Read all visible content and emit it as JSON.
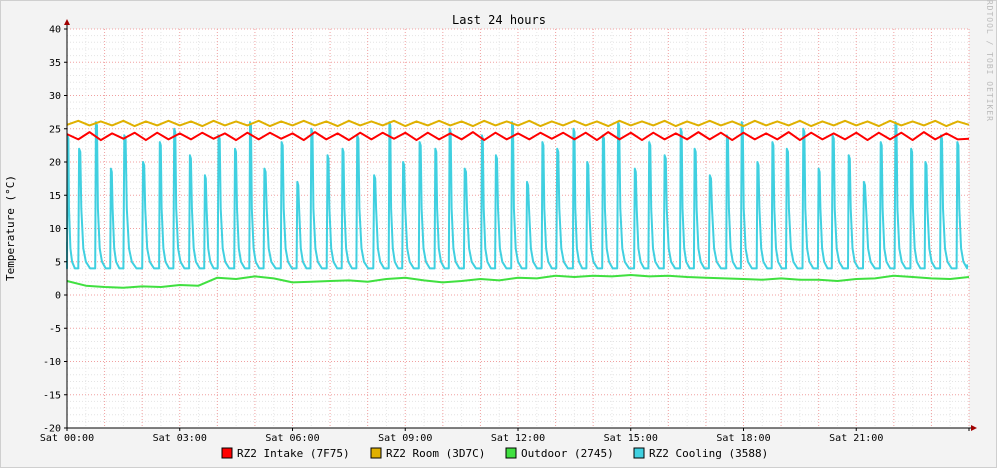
{
  "chart_data": {
    "type": "line",
    "title": "Last 24 hours",
    "ylabel": "Temperature (°C)",
    "xlabel": "",
    "watermark": "RRDTOOL / TOBI OETIKER",
    "ylim": [
      -20,
      40
    ],
    "yticks": [
      40,
      35,
      30,
      25,
      20,
      15,
      10,
      5,
      0,
      -5,
      -10,
      -15,
      -20
    ],
    "xlim": [
      0,
      24
    ],
    "xticks": [
      {
        "hour": 0,
        "label": "Sat 00:00"
      },
      {
        "hour": 3,
        "label": "Sat 03:00"
      },
      {
        "hour": 6,
        "label": "Sat 06:00"
      },
      {
        "hour": 9,
        "label": "Sat 09:00"
      },
      {
        "hour": 12,
        "label": "Sat 12:00"
      },
      {
        "hour": 15,
        "label": "Sat 15:00"
      },
      {
        "hour": 18,
        "label": "Sat 18:00"
      },
      {
        "hour": 21,
        "label": "Sat 21:00"
      }
    ],
    "grid": true,
    "legend_position": "bottom",
    "series": [
      {
        "name": "RZ2 Intake (7F75)",
        "color": "#ff0000",
        "x": [
          0,
          0.3,
          0.6,
          0.9,
          1.2,
          1.5,
          1.8,
          2.1,
          2.4,
          2.7,
          3.0,
          3.3,
          3.6,
          3.9,
          4.2,
          4.5,
          4.8,
          5.1,
          5.4,
          5.7,
          6.0,
          6.3,
          6.6,
          6.9,
          7.2,
          7.5,
          7.8,
          8.1,
          8.4,
          8.7,
          9.0,
          9.3,
          9.6,
          9.9,
          10.2,
          10.5,
          10.8,
          11.1,
          11.4,
          11.7,
          12.0,
          12.3,
          12.6,
          12.9,
          13.2,
          13.5,
          13.8,
          14.1,
          14.4,
          14.7,
          15.0,
          15.3,
          15.6,
          15.9,
          16.2,
          16.5,
          16.8,
          17.1,
          17.4,
          17.7,
          18.0,
          18.3,
          18.6,
          18.9,
          19.2,
          19.5,
          19.8,
          20.1,
          20.4,
          20.7,
          21.0,
          21.3,
          21.6,
          21.9,
          22.2,
          22.5,
          22.8,
          23.1,
          23.4,
          23.7,
          24.0
        ],
        "y": [
          24.2,
          23.4,
          24.5,
          23.3,
          24.3,
          23.5,
          24.4,
          23.3,
          24.4,
          23.4,
          24.3,
          23.4,
          24.4,
          23.5,
          24.3,
          23.3,
          24.4,
          23.4,
          24.4,
          23.5,
          24.3,
          23.3,
          24.5,
          23.4,
          24.3,
          23.3,
          24.4,
          23.4,
          24.4,
          23.5,
          24.4,
          23.3,
          24.4,
          23.4,
          24.3,
          23.4,
          24.5,
          23.3,
          24.4,
          23.4,
          24.3,
          23.4,
          24.4,
          23.5,
          24.4,
          23.4,
          24.4,
          23.3,
          24.5,
          23.4,
          24.4,
          23.3,
          24.4,
          23.4,
          24.3,
          23.4,
          24.5,
          23.4,
          24.4,
          23.3,
          24.4,
          23.4,
          24.3,
          23.4,
          24.5,
          23.3,
          24.4,
          23.4,
          24.3,
          23.4,
          24.4,
          23.3,
          24.4,
          23.4,
          24.4,
          23.3,
          24.5,
          23.4,
          24.3,
          23.4,
          23.5
        ]
      },
      {
        "name": "RZ2 Room (3D7C)",
        "color": "#e0b000",
        "x": [
          0,
          0.3,
          0.6,
          0.9,
          1.2,
          1.5,
          1.8,
          2.1,
          2.4,
          2.7,
          3.0,
          3.3,
          3.6,
          3.9,
          4.2,
          4.5,
          4.8,
          5.1,
          5.4,
          5.7,
          6.0,
          6.3,
          6.6,
          6.9,
          7.2,
          7.5,
          7.8,
          8.1,
          8.4,
          8.7,
          9.0,
          9.3,
          9.6,
          9.9,
          10.2,
          10.5,
          10.8,
          11.1,
          11.4,
          11.7,
          12.0,
          12.3,
          12.6,
          12.9,
          13.2,
          13.5,
          13.8,
          14.1,
          14.4,
          14.7,
          15.0,
          15.3,
          15.6,
          15.9,
          16.2,
          16.5,
          16.8,
          17.1,
          17.4,
          17.7,
          18.0,
          18.3,
          18.6,
          18.9,
          19.2,
          19.5,
          19.8,
          20.1,
          20.4,
          20.7,
          21.0,
          21.3,
          21.6,
          21.9,
          22.2,
          22.5,
          22.8,
          23.1,
          23.4,
          23.7,
          24.0
        ],
        "y": [
          25.6,
          26.2,
          25.5,
          26.1,
          25.5,
          26.2,
          25.4,
          26.1,
          25.5,
          26.2,
          25.5,
          26.1,
          25.4,
          26.2,
          25.5,
          26.1,
          25.5,
          26.2,
          25.4,
          26.1,
          25.5,
          26.2,
          25.5,
          26.1,
          25.4,
          26.2,
          25.5,
          26.1,
          25.5,
          26.2,
          25.4,
          26.1,
          25.5,
          26.2,
          25.5,
          26.1,
          25.4,
          26.2,
          25.5,
          26.1,
          25.5,
          26.2,
          25.4,
          26.1,
          25.5,
          26.2,
          25.5,
          26.1,
          25.4,
          26.2,
          25.5,
          26.1,
          25.5,
          26.2,
          25.4,
          26.1,
          25.5,
          26.2,
          25.5,
          26.1,
          25.4,
          26.2,
          25.5,
          26.1,
          25.5,
          26.2,
          25.4,
          26.1,
          25.5,
          26.2,
          25.5,
          26.1,
          25.4,
          26.2,
          25.5,
          26.1,
          25.5,
          26.2,
          25.4,
          26.1,
          25.6
        ]
      },
      {
        "name": "Outdoor (2745)",
        "color": "#40e040",
        "x": [
          0,
          0.5,
          1.0,
          1.5,
          2.0,
          2.5,
          3.0,
          3.5,
          4.0,
          4.5,
          5.0,
          5.5,
          6.0,
          6.5,
          7.0,
          7.5,
          8.0,
          8.5,
          9.0,
          9.5,
          10.0,
          10.5,
          11.0,
          11.5,
          12.0,
          12.5,
          13.0,
          13.5,
          14.0,
          14.5,
          15.0,
          15.5,
          16.0,
          16.5,
          17.0,
          17.5,
          18.0,
          18.5,
          19.0,
          19.5,
          20.0,
          20.5,
          21.0,
          21.5,
          22.0,
          22.5,
          23.0,
          23.5,
          24.0
        ],
        "y": [
          2.1,
          1.4,
          1.2,
          1.1,
          1.3,
          1.2,
          1.5,
          1.4,
          2.6,
          2.4,
          2.8,
          2.5,
          1.9,
          2.0,
          2.1,
          2.2,
          2.0,
          2.4,
          2.6,
          2.2,
          1.9,
          2.1,
          2.4,
          2.2,
          2.6,
          2.5,
          2.9,
          2.7,
          2.9,
          2.8,
          3.0,
          2.8,
          2.9,
          2.7,
          2.6,
          2.5,
          2.4,
          2.3,
          2.5,
          2.3,
          2.3,
          2.1,
          2.4,
          2.5,
          2.9,
          2.7,
          2.5,
          2.4,
          2.7
        ]
      },
      {
        "name": "RZ2 Cooling (3588)",
        "color": "#40d0e0",
        "cycle_hours": [
          0.3,
          0.45,
          0.4,
          0.35,
          0.5,
          0.45,
          0.38,
          0.42,
          0.4,
          0.36,
          0.44,
          0.4,
          0.38,
          0.46,
          0.42,
          0.37,
          0.43,
          0.4,
          0.39,
          0.45,
          0.41,
          0.36,
          0.44,
          0.42,
          0.38,
          0.4,
          0.46,
          0.37,
          0.43,
          0.4,
          0.41,
          0.39,
          0.44,
          0.36,
          0.42,
          0.4,
          0.45,
          0.38,
          0.41,
          0.43,
          0.37,
          0.4,
          0.46,
          0.39,
          0.42,
          0.4,
          0.38,
          0.44,
          0.41,
          0.37,
          0.43,
          0.4,
          0.45,
          0.39,
          0.42,
          0.38,
          0.41,
          0.44,
          0.4
        ],
        "peaks": [
          24,
          22,
          26,
          19,
          24,
          20,
          23,
          25,
          21,
          18,
          24,
          22,
          26,
          19,
          23,
          17,
          25,
          21,
          22,
          24,
          18,
          26,
          20,
          23,
          22,
          25,
          19,
          24,
          21,
          26,
          17,
          23,
          22,
          25,
          20,
          24,
          26,
          19,
          23,
          21,
          25,
          22,
          18,
          24,
          26,
          20,
          23,
          22,
          25,
          19,
          24,
          21,
          17,
          23,
          26,
          22,
          20,
          24,
          23
        ],
        "baseline": 4.0
      }
    ]
  }
}
